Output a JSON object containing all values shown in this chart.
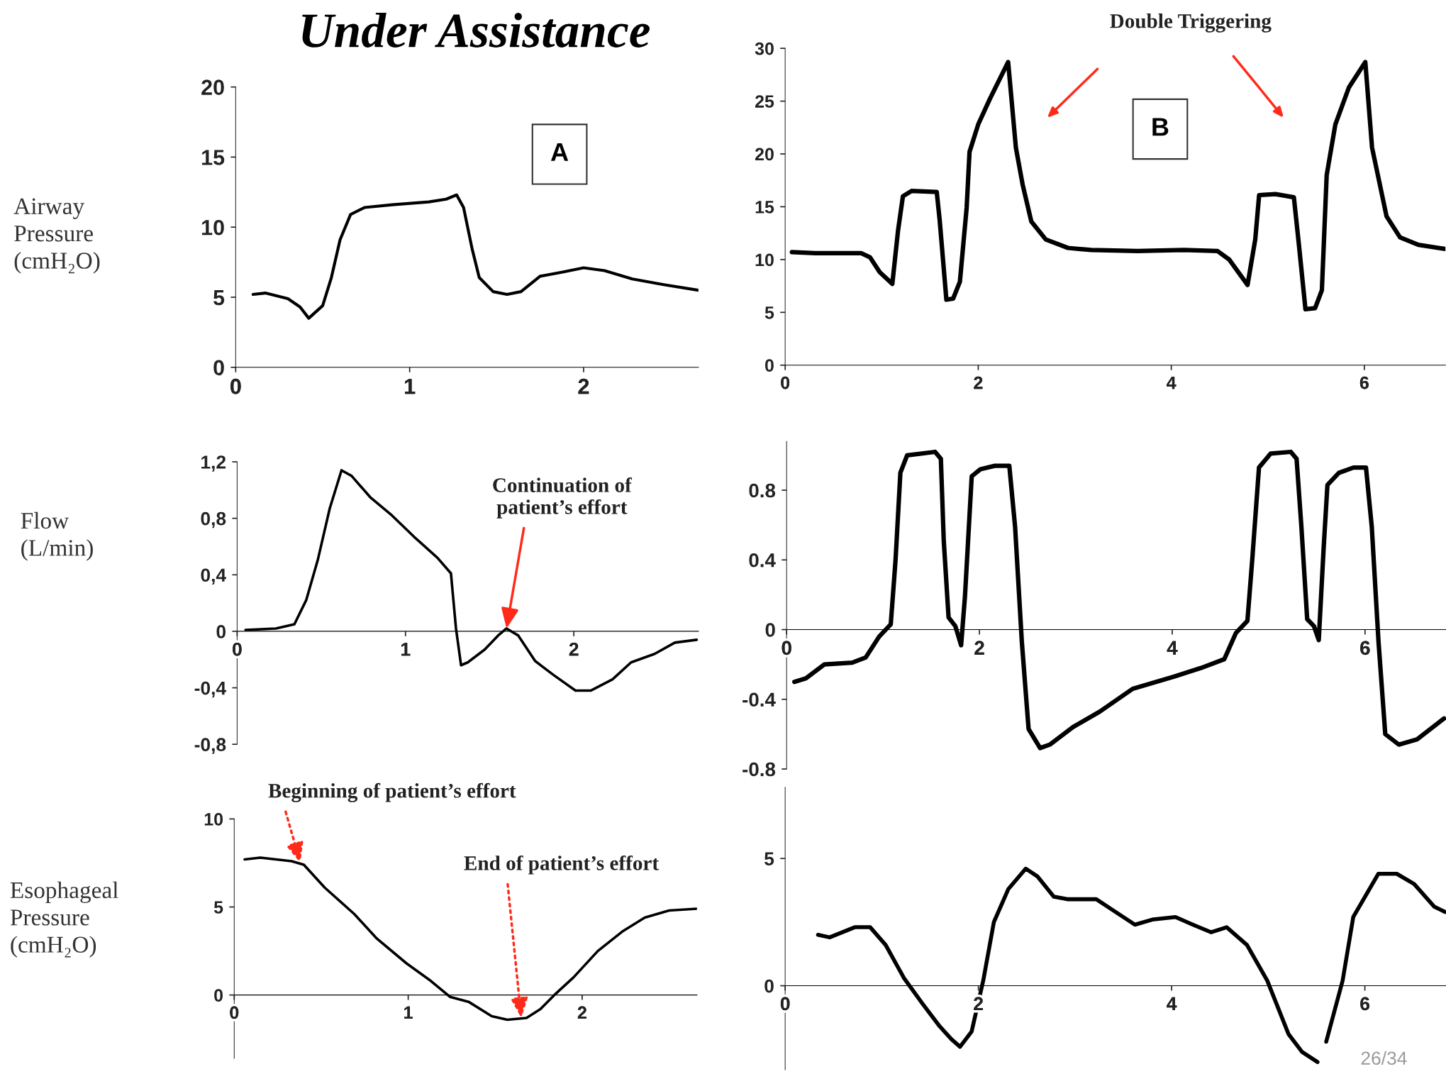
{
  "chart_data": [
    {
      "type": "line",
      "title": "Under Assistance",
      "ylabel": "Airway\nPressure\n(cmH₂O)",
      "annotations": [
        "A"
      ],
      "xlim": [
        0,
        2.66
      ],
      "ylim": [
        0,
        20
      ],
      "xticks": [
        0,
        1,
        2
      ],
      "yticks": [
        0,
        5,
        10,
        15,
        20
      ],
      "grid": false,
      "series": [
        {
          "color": "#000000",
          "x": [
            0.1,
            0.17,
            0.3,
            0.37,
            0.42,
            0.5,
            0.55,
            0.6,
            0.66,
            0.74,
            0.9,
            1.11,
            1.21,
            1.27,
            1.31,
            1.36,
            1.4,
            1.48,
            1.56,
            1.64,
            1.75,
            1.88,
            2.0,
            2.12,
            2.28,
            2.46,
            2.66
          ],
          "values": [
            5.2,
            5.3,
            4.9,
            4.3,
            3.5,
            4.4,
            6.4,
            9.1,
            10.9,
            11.4,
            11.6,
            11.8,
            12.0,
            12.3,
            11.4,
            8.4,
            6.4,
            5.4,
            5.2,
            5.4,
            6.5,
            6.8,
            7.1,
            6.9,
            6.3,
            5.9,
            5.5
          ]
        }
      ]
    },
    {
      "type": "line",
      "annotations": [
        "B",
        "Double Triggering"
      ],
      "xlim": [
        0,
        6.84
      ],
      "ylim": [
        0,
        30
      ],
      "xticks": [
        0,
        2,
        4,
        6
      ],
      "yticks": [
        0,
        5,
        10,
        15,
        20,
        25,
        30
      ],
      "grid": false,
      "series": [
        {
          "color": "#000000",
          "x": [
            0.07,
            0.31,
            0.79,
            0.88,
            0.98,
            1.11,
            1.17,
            1.22,
            1.31,
            1.57,
            1.6,
            1.67,
            1.74,
            1.81,
            1.88,
            1.91,
            2.0,
            2.12,
            2.31,
            2.39,
            2.46,
            2.55,
            2.7,
            2.93,
            3.17,
            3.65,
            4.13,
            4.48,
            4.6,
            4.79,
            4.87,
            4.91,
            5.08,
            5.27,
            5.32,
            5.39,
            5.49,
            5.56,
            5.61,
            5.7,
            5.84,
            6.01,
            6.08,
            6.23,
            6.37,
            6.56,
            6.84
          ],
          "values": [
            10.7,
            10.6,
            10.6,
            10.2,
            8.8,
            7.7,
            12.8,
            16.0,
            16.5,
            16.4,
            13.8,
            6.2,
            6.3,
            7.9,
            14.9,
            20.2,
            22.8,
            25.2,
            28.7,
            20.6,
            17.1,
            13.6,
            11.9,
            11.1,
            10.9,
            10.8,
            10.9,
            10.8,
            10.0,
            7.6,
            11.9,
            16.1,
            16.2,
            15.9,
            11.6,
            5.3,
            5.4,
            7.1,
            18.0,
            22.8,
            26.3,
            28.7,
            20.6,
            14.1,
            12.1,
            11.4,
            11.0
          ]
        }
      ]
    },
    {
      "type": "line",
      "ylabel": "Flow\n(L/min)",
      "annotations": [
        {
          "text": "Continuation of\npatient’s effort",
          "x": 1.6,
          "y": 0.02
        }
      ],
      "xlim": [
        0,
        2.74
      ],
      "ylim": [
        -0.8,
        1.2
      ],
      "xticks": [
        0,
        1,
        2
      ],
      "yticks": [
        {
          "value": -0.8,
          "label": "-0,8"
        },
        {
          "value": -0.4,
          "label": "-0,4"
        },
        0,
        {
          "value": 0.4,
          "label": "0,4"
        },
        {
          "value": 0.8,
          "label": "0,8"
        },
        {
          "value": 1.2,
          "label": "1,2"
        }
      ],
      "grid": false,
      "series": [
        {
          "color": "#000000",
          "x": [
            0.05,
            0.23,
            0.34,
            0.41,
            0.48,
            0.55,
            0.62,
            0.68,
            0.79,
            0.92,
            1.05,
            1.19,
            1.27,
            1.3,
            1.33,
            1.37,
            1.47,
            1.55,
            1.6,
            1.67,
            1.77,
            1.88,
            2.01,
            2.1,
            2.23,
            2.34,
            2.48,
            2.6,
            2.73
          ],
          "values": [
            0.01,
            0.02,
            0.05,
            0.22,
            0.51,
            0.87,
            1.14,
            1.1,
            0.95,
            0.82,
            0.67,
            0.52,
            0.41,
            0.02,
            -0.24,
            -0.22,
            -0.13,
            -0.03,
            0.02,
            -0.03,
            -0.21,
            -0.31,
            -0.42,
            -0.42,
            -0.34,
            -0.22,
            -0.16,
            -0.08,
            -0.06
          ]
        }
      ]
    },
    {
      "type": "line",
      "xlim": [
        0,
        6.84
      ],
      "ylim": [
        -0.8,
        1.08
      ],
      "xticks": [
        0,
        2,
        4,
        6
      ],
      "yticks": [
        -0.8,
        -0.4,
        0,
        0.4,
        0.8
      ],
      "grid": false,
      "series": [
        {
          "color": "#000000",
          "x": [
            0.08,
            0.2,
            0.39,
            0.68,
            0.82,
            0.96,
            1.08,
            1.13,
            1.18,
            1.25,
            1.54,
            1.6,
            1.63,
            1.68,
            1.75,
            1.81,
            1.85,
            1.92,
            2.01,
            2.16,
            2.31,
            2.37,
            2.44,
            2.51,
            2.63,
            2.73,
            2.97,
            3.25,
            3.59,
            4.02,
            4.3,
            4.54,
            4.66,
            4.78,
            4.83,
            4.9,
            5.02,
            5.23,
            5.29,
            5.34,
            5.4,
            5.47,
            5.52,
            5.57,
            5.61,
            5.73,
            5.88,
            6.01,
            6.07,
            6.14,
            6.21,
            6.35,
            6.54,
            6.82
          ],
          "values": [
            -0.3,
            -0.28,
            -0.2,
            -0.19,
            -0.16,
            -0.04,
            0.03,
            0.4,
            0.9,
            1.0,
            1.02,
            0.98,
            0.51,
            0.07,
            0.02,
            -0.09,
            0.19,
            0.88,
            0.92,
            0.94,
            0.94,
            0.59,
            -0.07,
            -0.57,
            -0.68,
            -0.66,
            -0.56,
            -0.47,
            -0.34,
            -0.27,
            -0.22,
            -0.17,
            -0.02,
            0.05,
            0.4,
            0.93,
            1.01,
            1.02,
            0.98,
            0.59,
            0.06,
            0.02,
            -0.06,
            0.46,
            0.83,
            0.9,
            0.93,
            0.93,
            0.59,
            -0.07,
            -0.6,
            -0.66,
            -0.63,
            -0.51
          ]
        }
      ]
    },
    {
      "type": "line",
      "ylabel": "Esophageal\nPressure\n(cmH₂O)",
      "annotations": [
        {
          "text": "Beginning of patient’s effort",
          "x": 0.38,
          "y": 7.5
        },
        {
          "text": "End of patient’s effort",
          "x": 1.65,
          "y": -1.3
        }
      ],
      "xlim": [
        0,
        2.66
      ],
      "ylim": [
        -3.6,
        10
      ],
      "xticks": [
        0,
        1,
        2
      ],
      "yticks": [
        0,
        5,
        10
      ],
      "grid": false,
      "series": [
        {
          "color": "#000000",
          "x": [
            0.06,
            0.15,
            0.33,
            0.4,
            0.52,
            0.69,
            0.82,
            0.99,
            1.13,
            1.24,
            1.35,
            1.48,
            1.57,
            1.68,
            1.76,
            1.84,
            1.95,
            2.09,
            2.23,
            2.36,
            2.5,
            2.66
          ],
          "values": [
            7.7,
            7.8,
            7.6,
            7.4,
            6.1,
            4.6,
            3.2,
            1.8,
            0.8,
            -0.1,
            -0.4,
            -1.2,
            -1.4,
            -1.3,
            -0.8,
            0.0,
            1.0,
            2.5,
            3.6,
            4.4,
            4.8,
            4.9
          ]
        }
      ]
    },
    {
      "type": "line",
      "annotations": [
        "26/34"
      ],
      "xlim": [
        0,
        6.84
      ],
      "ylim": [
        -3.3,
        7.8
      ],
      "xticks": [
        0,
        2,
        4,
        6
      ],
      "yticks": [
        0,
        5
      ],
      "grid": false,
      "series": [
        {
          "color": "#000000",
          "x": [
            0.34,
            0.46,
            0.72,
            0.88,
            1.04,
            1.23,
            1.42,
            1.6,
            1.72,
            1.81,
            1.93,
            2.05,
            2.16,
            2.31,
            2.49,
            2.61,
            2.78,
            2.92,
            3.22,
            3.38,
            3.62,
            3.8,
            4.04,
            4.22,
            4.41,
            4.57,
            4.78,
            4.99,
            5.21,
            5.35,
            5.51,
            5.55,
            5.6,
            5.77,
            5.88,
            6.14,
            6.33,
            6.51,
            6.72,
            6.83
          ],
          "values": [
            2.0,
            1.9,
            2.3,
            2.3,
            1.6,
            0.3,
            -0.7,
            -1.6,
            -2.1,
            -2.4,
            -1.8,
            0.2,
            2.5,
            3.8,
            4.6,
            4.3,
            3.5,
            3.4,
            3.4,
            3.0,
            2.4,
            2.6,
            2.7,
            2.4,
            2.1,
            2.3,
            1.6,
            0.2,
            -1.9,
            -2.6,
            -3.0,
            null,
            -2.2,
            0.2,
            2.7,
            4.4,
            4.4,
            4.0,
            3.1,
            2.9
          ]
        }
      ]
    }
  ]
}
